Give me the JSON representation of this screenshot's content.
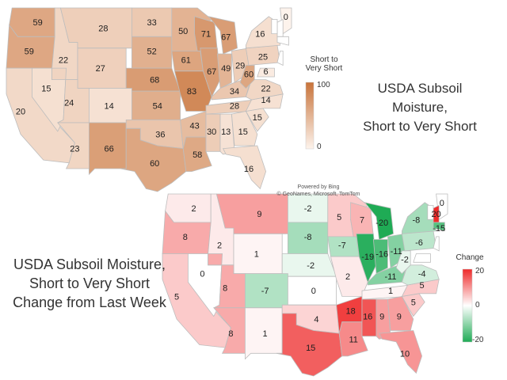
{
  "map1": {
    "title_line1": "USDA Subsoil Moisture,",
    "title_line2": "Short to Very Short",
    "legend": {
      "title_line1": "Short to",
      "title_line2": "Very Short",
      "max_label": "100",
      "min_label": "0",
      "color_high": "#c8733a",
      "color_low": "#fdf3ec"
    },
    "values": [
      {
        "state": "WA",
        "value": 59
      },
      {
        "state": "OR",
        "value": 59
      },
      {
        "state": "CA",
        "value": 20
      },
      {
        "state": "NV",
        "value": 15
      },
      {
        "state": "ID",
        "value": 22
      },
      {
        "state": "MT",
        "value": 28
      },
      {
        "state": "WY",
        "value": 27
      },
      {
        "state": "UT",
        "value": 24
      },
      {
        "state": "CO",
        "value": 14
      },
      {
        "state": "AZ",
        "value": 23
      },
      {
        "state": "NM",
        "value": 66
      },
      {
        "state": "ND",
        "value": 33
      },
      {
        "state": "SD",
        "value": 52
      },
      {
        "state": "NE",
        "value": 68
      },
      {
        "state": "KS",
        "value": 54
      },
      {
        "state": "OK",
        "value": 36
      },
      {
        "state": "TX",
        "value": 60
      },
      {
        "state": "MN",
        "value": 50
      },
      {
        "state": "IA",
        "value": 61
      },
      {
        "state": "MO",
        "value": 83
      },
      {
        "state": "AR",
        "value": 43
      },
      {
        "state": "LA",
        "value": 58
      },
      {
        "state": "WI",
        "value": 71
      },
      {
        "state": "IL",
        "value": 67
      },
      {
        "state": "MI",
        "value": 67
      },
      {
        "state": "IN",
        "value": 49
      },
      {
        "state": "OH",
        "value": 29
      },
      {
        "state": "KY",
        "value": 34
      },
      {
        "state": "TN",
        "value": 28
      },
      {
        "state": "MS",
        "value": 30
      },
      {
        "state": "AL",
        "value": 13
      },
      {
        "state": "GA",
        "value": 15
      },
      {
        "state": "FL",
        "value": 16
      },
      {
        "state": "SC",
        "value": 15
      },
      {
        "state": "NC",
        "value": 14
      },
      {
        "state": "VA",
        "value": 22
      },
      {
        "state": "WV",
        "value": 60
      },
      {
        "state": "PA",
        "value": 25
      },
      {
        "state": "NY",
        "value": 16
      },
      {
        "state": "ME",
        "value": 0
      },
      {
        "state": "MD",
        "value": 6
      }
    ]
  },
  "map2": {
    "title_line1": "USDA Subsoil Moisture,",
    "title_line2": "Short to Very Short",
    "title_line3": "Change from Last Week",
    "legend": {
      "title": "Change",
      "max_label": "20",
      "mid_label": "0",
      "min_label": "-20",
      "color_high": "#ee2a2a",
      "color_mid": "#ffffff",
      "color_low": "#1fab55"
    },
    "values": [
      {
        "state": "WA",
        "value": 2
      },
      {
        "state": "OR",
        "value": 8
      },
      {
        "state": "CA",
        "value": 5
      },
      {
        "state": "NV",
        "value": 0
      },
      {
        "state": "ID",
        "value": 2
      },
      {
        "state": "MT",
        "value": 9
      },
      {
        "state": "WY",
        "value": 1
      },
      {
        "state": "UT",
        "value": 8
      },
      {
        "state": "CO",
        "value": -7
      },
      {
        "state": "AZ",
        "value": 8
      },
      {
        "state": "NM",
        "value": 1
      },
      {
        "state": "ND",
        "value": -2
      },
      {
        "state": "SD",
        "value": -8
      },
      {
        "state": "NE",
        "value": -2
      },
      {
        "state": "KS",
        "value": 0
      },
      {
        "state": "OK",
        "value": 4
      },
      {
        "state": "TX",
        "value": 15
      },
      {
        "state": "MN",
        "value": 5
      },
      {
        "state": "IA",
        "value": -7
      },
      {
        "state": "MO",
        "value": 2
      },
      {
        "state": "AR",
        "value": 18
      },
      {
        "state": "LA",
        "value": 11
      },
      {
        "state": "WI",
        "value": 7
      },
      {
        "state": "IL",
        "value": -19
      },
      {
        "state": "MI",
        "value": -20
      },
      {
        "state": "IN",
        "value": -16
      },
      {
        "state": "OH",
        "value": -11
      },
      {
        "state": "KY",
        "value": -11
      },
      {
        "state": "TN",
        "value": 1
      },
      {
        "state": "MS",
        "value": 16
      },
      {
        "state": "AL",
        "value": 9
      },
      {
        "state": "GA",
        "value": 9
      },
      {
        "state": "FL",
        "value": 10
      },
      {
        "state": "SC",
        "value": 5
      },
      {
        "state": "NC",
        "value": 5
      },
      {
        "state": "VA",
        "value": -4
      },
      {
        "state": "WV",
        "value": -2
      },
      {
        "state": "PA",
        "value": -6
      },
      {
        "state": "NY",
        "value": -8
      },
      {
        "state": "MA",
        "value": -15
      },
      {
        "state": "NH",
        "value": 20
      },
      {
        "state": "ME",
        "value": 0
      }
    ]
  },
  "credit": {
    "line1": "Powered by Bing",
    "line2": "© GeoNames, Microsoft, TomTom"
  }
}
